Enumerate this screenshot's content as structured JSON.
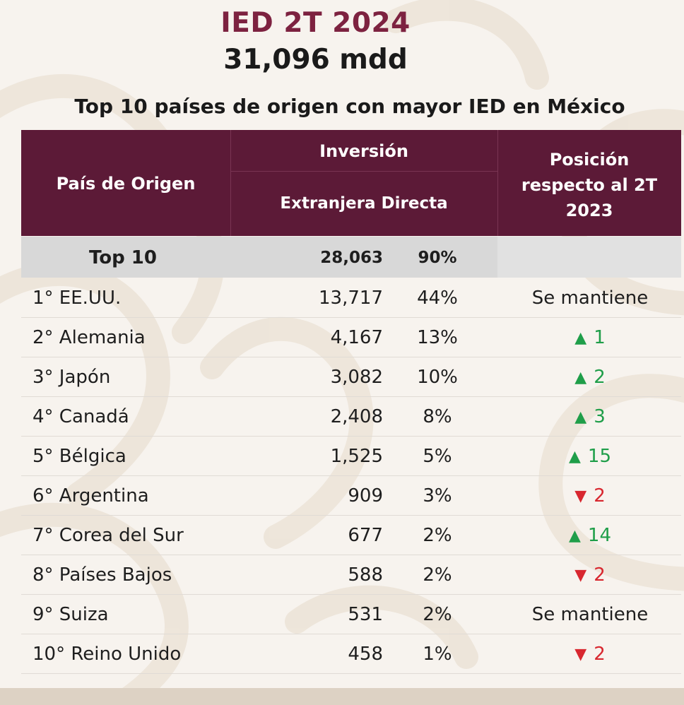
{
  "header": {
    "title": "IED 2T 2024",
    "total": "31,096 mdd",
    "subtitle": "Top 10 países de origen con mayor IED en México"
  },
  "table": {
    "col_country": "País de Origen",
    "col_ied_line1": "Inversión",
    "col_ied_line2": "Extranjera Directa",
    "col_position_line1": "Posición",
    "col_position_line2": "respecto al 2T",
    "col_position_line3": "2023",
    "top10": {
      "label": "Top 10",
      "value": "28,063",
      "share": "90%"
    }
  },
  "chart_data": {
    "type": "table",
    "title": "Top 10 países de origen con mayor IED en México",
    "unit": "mdd",
    "columns": [
      "País de Origen",
      "Inversión Extranjera Directa",
      "%",
      "Posición respecto al 2T 2023"
    ],
    "rows": [
      {
        "country": "1° EE.UU.",
        "value": "13,717",
        "share": "44%",
        "position": "Se mantiene",
        "direction": "same"
      },
      {
        "country": "2° Alemania",
        "value": "4,167",
        "share": "13%",
        "position": "1",
        "direction": "up"
      },
      {
        "country": "3° Japón",
        "value": "3,082",
        "share": "10%",
        "position": "2",
        "direction": "up"
      },
      {
        "country": "4° Canadá",
        "value": "2,408",
        "share": "8%",
        "position": "3",
        "direction": "up"
      },
      {
        "country": "5° Bélgica",
        "value": "1,525",
        "share": "5%",
        "position": "15",
        "direction": "up"
      },
      {
        "country": "6° Argentina",
        "value": "909",
        "share": "3%",
        "position": "2",
        "direction": "down"
      },
      {
        "country": "7° Corea del Sur",
        "value": "677",
        "share": "2%",
        "position": "14",
        "direction": "up"
      },
      {
        "country": "8° Países Bajos",
        "value": "588",
        "share": "2%",
        "position": "2",
        "direction": "down"
      },
      {
        "country": "9° Suiza",
        "value": "531",
        "share": "2%",
        "position": "Se mantiene",
        "direction": "same"
      },
      {
        "country": "10° Reino Unido",
        "value": "458",
        "share": "1%",
        "position": "2",
        "direction": "down"
      }
    ]
  },
  "colors": {
    "header_bg": "#5c1a37",
    "title": "#7d2240",
    "up": "#1f9e49",
    "down": "#d8272f"
  }
}
